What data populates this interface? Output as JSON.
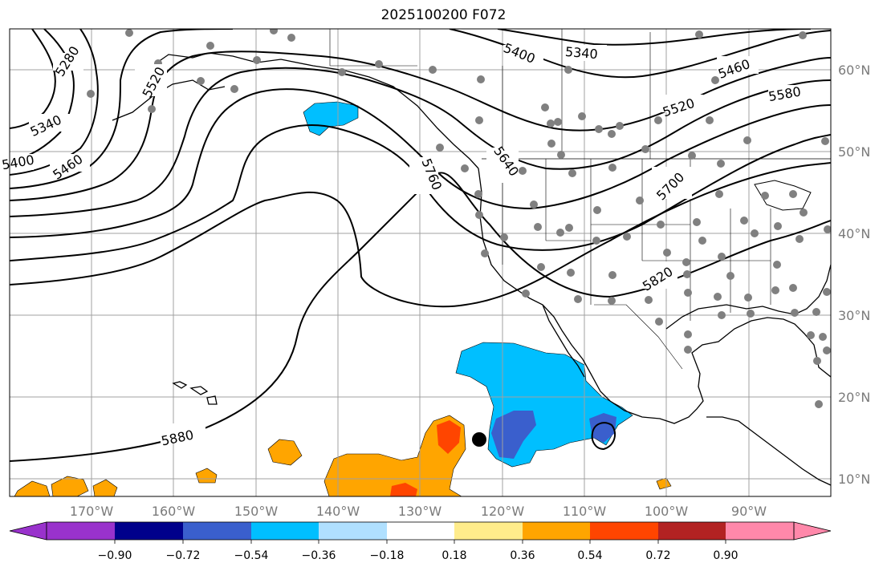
{
  "title": "2025100200 F072",
  "map": {
    "projection": "equirectangular",
    "lon_range": [
      -180,
      -80
    ],
    "lat_range": [
      8,
      65
    ],
    "lat_labels": [
      "60°N",
      "50°N",
      "40°N",
      "30°N",
      "20°N",
      "10°N"
    ],
    "lon_labels": [
      "170°W",
      "160°W",
      "150°W",
      "140°W",
      "130°W",
      "120°W",
      "110°W",
      "100°W",
      "90°W"
    ],
    "contour_labels": [
      "5280",
      "5340",
      "5400",
      "5460",
      "5520",
      "5400",
      "5340",
      "5460",
      "5580",
      "5520",
      "5640",
      "5760",
      "5700",
      "5820",
      "5880"
    ],
    "colors": {
      "land_outline": "#000000",
      "grid": "#9a9a9a",
      "station_dots": "#808080",
      "label_text": "#7a7a7a"
    }
  },
  "colorbar": {
    "ticks": [
      "−0.90",
      "−0.72",
      "−0.54",
      "−0.36",
      "−0.18",
      "0.18",
      "0.36",
      "0.54",
      "0.72",
      "0.90"
    ],
    "colors": [
      "#9932cc",
      "#00008b",
      "#3a5fcd",
      "#00bfff",
      "#b0e0ff",
      "#ffffff",
      "#ffec8b",
      "#ffa500",
      "#ff4500",
      "#b22222",
      "#ff88aa"
    ]
  }
}
